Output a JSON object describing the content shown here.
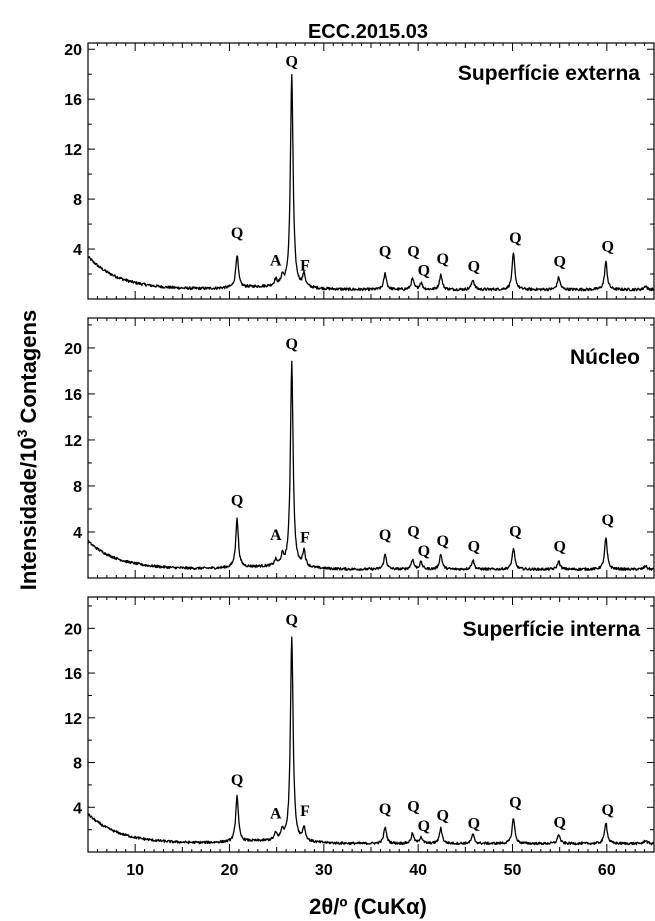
{
  "chart_data": {
    "type": "line",
    "title": "ECC.2015.03",
    "xlabel": "2θ/º (CuKα)",
    "ylabel_main": "Intensidade/10",
    "ylabel_sup": "3",
    "ylabel_tail": " Contagens",
    "xlim": [
      5,
      65
    ],
    "x_ticks": [
      10,
      20,
      30,
      40,
      50,
      60
    ],
    "panels": [
      {
        "label": "Superfície externa",
        "ylim": [
          0,
          20.5
        ],
        "y_ticks": [
          4,
          8,
          12,
          16,
          20
        ],
        "baseline_start": 3.4,
        "baseline_end": 0.75,
        "peaks": [
          [
            20.8,
            2.6
          ],
          [
            24.9,
            0.5
          ],
          [
            25.6,
            0.7
          ],
          [
            26.6,
            16.9
          ],
          [
            27.9,
            1.0
          ],
          [
            36.5,
            1.3
          ],
          [
            39.4,
            0.85
          ],
          [
            40.3,
            0.55
          ],
          [
            42.4,
            1.2
          ],
          [
            45.8,
            0.8
          ],
          [
            50.1,
            2.9
          ],
          [
            54.9,
            1.0
          ],
          [
            59.9,
            2.2
          ],
          [
            64.1,
            0.3
          ]
        ],
        "peak_labels": [
          {
            "text": "Q",
            "x": 20.8,
            "y": 4.9
          },
          {
            "text": "A",
            "x": 24.9,
            "y": 2.7
          },
          {
            "text": "Q",
            "x": 26.6,
            "y": 18.6
          },
          {
            "text": "F",
            "x": 28.0,
            "y": 2.3
          },
          {
            "text": "Q",
            "x": 36.5,
            "y": 3.4
          },
          {
            "text": "Q",
            "x": 39.5,
            "y": 3.4
          },
          {
            "text": "Q",
            "x": 40.6,
            "y": 1.9
          },
          {
            "text": "Q",
            "x": 42.6,
            "y": 2.8
          },
          {
            "text": "Q",
            "x": 45.9,
            "y": 2.2
          },
          {
            "text": "Q",
            "x": 50.3,
            "y": 4.5
          },
          {
            "text": "Q",
            "x": 55.0,
            "y": 2.6
          },
          {
            "text": "Q",
            "x": 60.1,
            "y": 3.8
          }
        ]
      },
      {
        "label": "Núcleo",
        "ylim": [
          0,
          22.6
        ],
        "y_ticks": [
          4,
          8,
          12,
          16,
          20
        ],
        "baseline_start": 3.2,
        "baseline_end": 0.75,
        "peaks": [
          [
            20.8,
            4.2
          ],
          [
            24.9,
            0.5
          ],
          [
            25.6,
            0.8
          ],
          [
            26.6,
            17.8
          ],
          [
            27.9,
            1.4
          ],
          [
            36.5,
            1.3
          ],
          [
            39.4,
            0.85
          ],
          [
            40.3,
            0.6
          ],
          [
            42.4,
            1.3
          ],
          [
            45.8,
            0.8
          ],
          [
            50.1,
            1.8
          ],
          [
            54.9,
            0.7
          ],
          [
            59.9,
            2.7
          ],
          [
            64.1,
            0.3
          ]
        ],
        "peak_labels": [
          {
            "text": "Q",
            "x": 20.8,
            "y": 6.3
          },
          {
            "text": "A",
            "x": 24.9,
            "y": 3.3
          },
          {
            "text": "Q",
            "x": 26.6,
            "y": 19.9
          },
          {
            "text": "F",
            "x": 28.0,
            "y": 3.1
          },
          {
            "text": "Q",
            "x": 36.5,
            "y": 3.3
          },
          {
            "text": "Q",
            "x": 39.5,
            "y": 3.6
          },
          {
            "text": "Q",
            "x": 40.6,
            "y": 1.9
          },
          {
            "text": "Q",
            "x": 42.6,
            "y": 2.8
          },
          {
            "text": "Q",
            "x": 45.9,
            "y": 2.3
          },
          {
            "text": "Q",
            "x": 50.3,
            "y": 3.6
          },
          {
            "text": "Q",
            "x": 55.0,
            "y": 2.3
          },
          {
            "text": "Q",
            "x": 60.1,
            "y": 4.6
          }
        ]
      },
      {
        "label": "Superfície interna",
        "ylim": [
          0,
          22.8
        ],
        "y_ticks": [
          4,
          8,
          12,
          16,
          20
        ],
        "baseline_start": 3.4,
        "baseline_end": 0.75,
        "peaks": [
          [
            20.8,
            4.1
          ],
          [
            24.9,
            0.6
          ],
          [
            25.6,
            0.8
          ],
          [
            26.6,
            18.3
          ],
          [
            27.9,
            1.2
          ],
          [
            36.5,
            1.5
          ],
          [
            39.4,
            0.9
          ],
          [
            40.3,
            0.6
          ],
          [
            42.4,
            1.4
          ],
          [
            45.8,
            0.8
          ],
          [
            50.1,
            2.3
          ],
          [
            54.9,
            0.8
          ],
          [
            59.9,
            1.9
          ],
          [
            64.1,
            0.3
          ]
        ],
        "peak_labels": [
          {
            "text": "Q",
            "x": 20.8,
            "y": 6.0
          },
          {
            "text": "A",
            "x": 24.9,
            "y": 3.0
          },
          {
            "text": "Q",
            "x": 26.6,
            "y": 20.3
          },
          {
            "text": "F",
            "x": 28.0,
            "y": 3.2
          },
          {
            "text": "Q",
            "x": 36.5,
            "y": 3.4
          },
          {
            "text": "Q",
            "x": 39.5,
            "y": 3.6
          },
          {
            "text": "Q",
            "x": 40.6,
            "y": 1.9
          },
          {
            "text": "Q",
            "x": 42.6,
            "y": 2.8
          },
          {
            "text": "Q",
            "x": 45.9,
            "y": 2.1
          },
          {
            "text": "Q",
            "x": 50.3,
            "y": 4.0
          },
          {
            "text": "Q",
            "x": 55.0,
            "y": 2.2
          },
          {
            "text": "Q",
            "x": 60.1,
            "y": 3.3
          }
        ]
      }
    ]
  }
}
